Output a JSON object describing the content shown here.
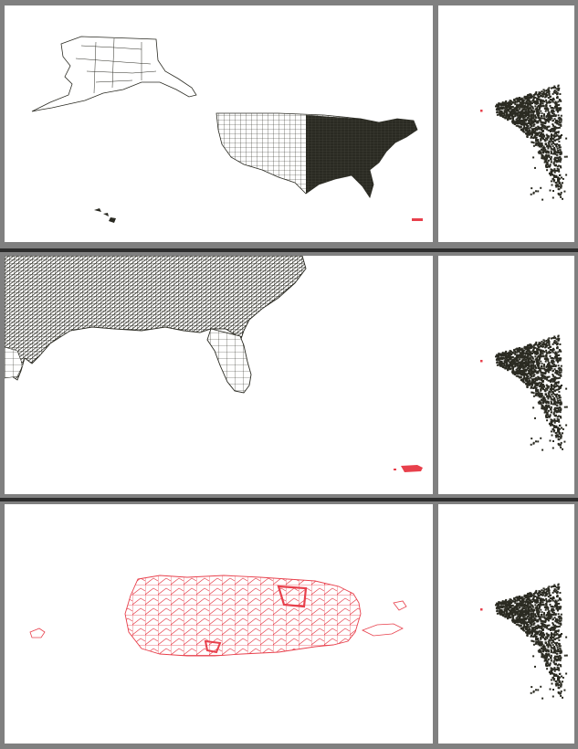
{
  "colors": {
    "frame": "#808080",
    "panel_bg": "#ffffff",
    "mainland": "#2a2a22",
    "highlight": "#e8404c",
    "scatter": "#2b2b22"
  },
  "views": [
    {
      "name": "full-us",
      "selected_region": "puerto-rico",
      "map_zoom": "national"
    },
    {
      "name": "southeast",
      "selected_region": "puerto-rico",
      "map_zoom": "regional"
    },
    {
      "name": "puerto-rico",
      "selected_region": "puerto-rico",
      "map_zoom": "local"
    }
  ],
  "scatter": {
    "point_count": 1400,
    "highlight_point_count": 1
  },
  "icons": [
    "alaska-map-icon",
    "hawaii-map-icon",
    "puerto-rico-map-icon"
  ]
}
